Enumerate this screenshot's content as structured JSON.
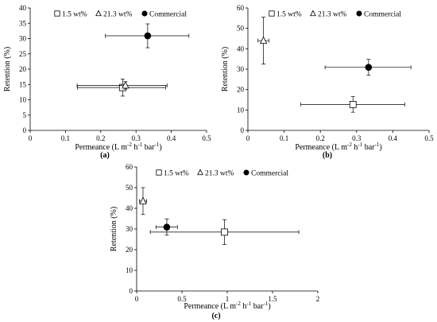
{
  "chart_data": [
    {
      "type": "scatter",
      "panel_label": "(a)",
      "xlabel_main": "Permeance (L m",
      "xlabel_exp1": "-2",
      "xlabel_mid1": " h",
      "xlabel_exp2": "-1",
      "xlabel_mid2": " bar",
      "xlabel_exp3": "-1",
      "xlabel_end": ")",
      "ylabel": "Retention (%)",
      "xlim": [
        0,
        0.5
      ],
      "ylim": [
        0,
        40
      ],
      "xticks": [
        0,
        0.1,
        0.2,
        0.3,
        0.4,
        0.5
      ],
      "xtick_labels": [
        "0",
        "0.1",
        "0.2",
        "0.3",
        "0.4",
        "0.5"
      ],
      "yticks": [
        0,
        5,
        10,
        15,
        20,
        25,
        30,
        35,
        40
      ],
      "ytick_labels": [
        "0",
        "5",
        "10",
        "15",
        "20",
        "25",
        "30",
        "35",
        "40"
      ],
      "legend_position": "top",
      "series": [
        {
          "name": "1.5 wt%",
          "marker": "square",
          "x": 0.262,
          "y": 14.0,
          "xerr": [
            0.128,
            0.122
          ],
          "yerr": [
            2.8,
            2.8
          ]
        },
        {
          "name": "21.3 wt%",
          "marker": "triangle",
          "x": 0.27,
          "y": 14.7,
          "xerr": [
            0.137,
            0.118
          ],
          "yerr": [
            1.2,
            1.2
          ]
        },
        {
          "name": "Commercial",
          "marker": "circle",
          "x": 0.333,
          "y": 30.9,
          "xerr": [
            0.12,
            0.117
          ],
          "yerr": [
            3.9,
            3.9
          ]
        }
      ]
    },
    {
      "type": "scatter",
      "panel_label": "(b)",
      "xlabel_main": "Permeance (L m",
      "xlabel_exp1": "-2",
      "xlabel_mid1": " h",
      "xlabel_exp2": "-1",
      "xlabel_mid2": " bar",
      "xlabel_exp3": "-1",
      "xlabel_end": ")",
      "ylabel": "Retention (%)",
      "xlim": [
        0,
        0.5
      ],
      "ylim": [
        0,
        60
      ],
      "xticks": [
        0,
        0.1,
        0.2,
        0.3,
        0.4,
        0.5
      ],
      "xtick_labels": [
        "0",
        "0.1",
        "0.2",
        "0.3",
        "0.4",
        "0.5"
      ],
      "yticks": [
        0,
        10,
        20,
        30,
        40,
        50,
        60
      ],
      "ytick_labels": [
        "0",
        "10",
        "20",
        "30",
        "40",
        "50",
        "60"
      ],
      "legend_position": "top",
      "series": [
        {
          "name": "1.5 wt%",
          "marker": "square",
          "x": 0.29,
          "y": 12.7,
          "xerr": [
            0.144,
            0.143
          ],
          "yerr": [
            3.8,
            3.8
          ]
        },
        {
          "name": "21.3 wt%",
          "marker": "triangle",
          "x": 0.043,
          "y": 44.0,
          "xerr": [
            0.015,
            0.015
          ],
          "yerr": [
            11.5,
            11.5
          ]
        },
        {
          "name": "Commercial",
          "marker": "circle",
          "x": 0.333,
          "y": 30.9,
          "xerr": [
            0.12,
            0.117
          ],
          "yerr": [
            3.9,
            3.9
          ]
        }
      ]
    },
    {
      "type": "scatter",
      "panel_label": "(c)",
      "xlabel_main": "Permeance (L m",
      "xlabel_exp1": "-2",
      "xlabel_mid1": " h",
      "xlabel_exp2": "-1",
      "xlabel_mid2": " bar",
      "xlabel_exp3": "-1",
      "xlabel_end": ")",
      "ylabel": "Retention (%)",
      "xlim": [
        0,
        2
      ],
      "ylim": [
        0,
        60
      ],
      "xticks": [
        0,
        0.5,
        1,
        1.5,
        2
      ],
      "xtick_labels": [
        "0",
        "0.5",
        "1",
        "1.5",
        "2"
      ],
      "yticks": [
        0,
        10,
        20,
        30,
        40,
        50,
        60
      ],
      "ytick_labels": [
        "0",
        "10",
        "20",
        "30",
        "40",
        "50",
        "60"
      ],
      "legend_position": "top",
      "series": [
        {
          "name": "1.5 wt%",
          "marker": "square",
          "x": 0.97,
          "y": 28.5,
          "xerr": [
            0.82,
            0.82
          ],
          "yerr": [
            6.0,
            6.0
          ]
        },
        {
          "name": "21.3 wt%",
          "marker": "triangle",
          "x": 0.07,
          "y": 43.5,
          "xerr": [
            0.04,
            0.04
          ],
          "yerr": [
            6.5,
            6.5
          ]
        },
        {
          "name": "Commercial",
          "marker": "circle",
          "x": 0.333,
          "y": 30.9,
          "xerr": [
            0.12,
            0.117
          ],
          "yerr": [
            3.9,
            3.9
          ]
        }
      ]
    }
  ]
}
